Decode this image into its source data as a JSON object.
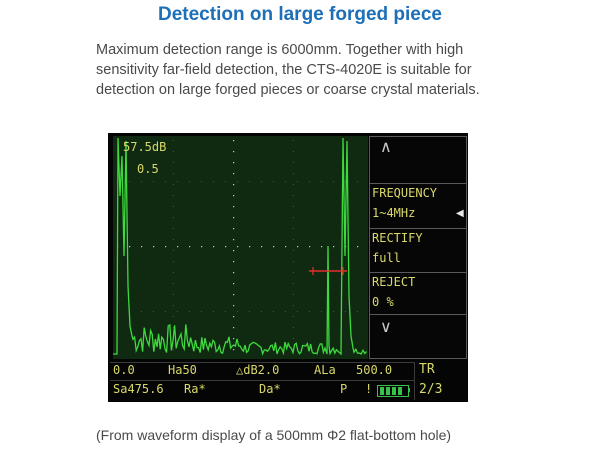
{
  "title": "Detection on large forged piece",
  "description_lines": [
    "Maximum detection range is 6000mm. Together with high",
    "sensitivity far-field detection, the CTS-4020E is suitable for",
    "detection on large forged pieces or coarse crystal materials."
  ],
  "caption": "(From waveform display of a 500mm Φ2 flat-bottom hole)",
  "screen": {
    "gain": "57.5dB",
    "gain_step": "0.5",
    "waveform_color": "#3fd93f",
    "gate_color": "#e0302a",
    "grid_color": "#c8c8c8"
  },
  "side_menu": {
    "up_icon": "chevron-up",
    "down_icon": "chevron-down",
    "frequency_label": "FREQUENCY",
    "frequency_value": "1~4MHz",
    "rectify_label": "RECTIFY",
    "rectify_value": "full",
    "reject_label": "REJECT",
    "reject_value": "0 %"
  },
  "status_bar": {
    "row1": {
      "val1": "0.0",
      "val2": "Ha50",
      "val3": "△dB2.0",
      "val4": "ALa",
      "val5": "500.0"
    },
    "row2": {
      "sa": "Sa475.6",
      "ra": "Ra*",
      "da": "Da*",
      "p": "P",
      "mark": "!"
    },
    "tr_label": "TR",
    "page": "2/3"
  }
}
